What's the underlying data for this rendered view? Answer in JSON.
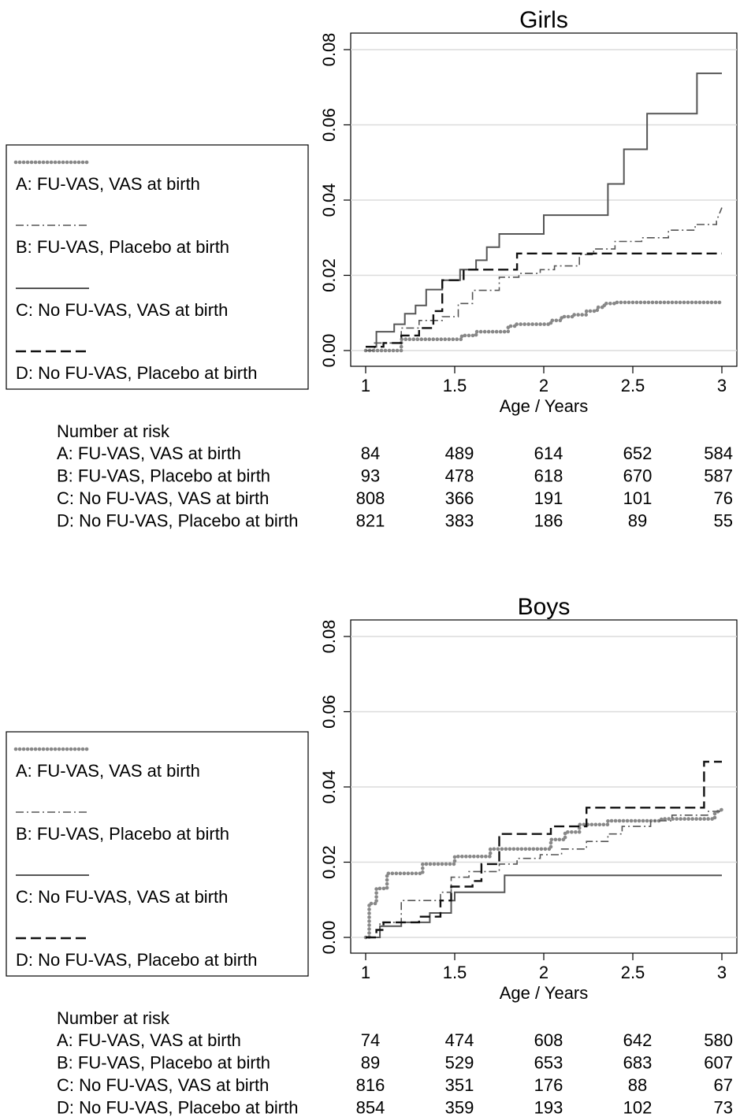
{
  "chart_data": [
    {
      "type": "line",
      "title": "Girls",
      "xlabel": "Age / Years",
      "ylabel": "",
      "xlim": [
        1,
        3
      ],
      "ylim": [
        0,
        0.08
      ],
      "xticks": [
        "1",
        "1.5",
        "2",
        "2.5",
        "3"
      ],
      "yticks": [
        "0.00",
        "0.02",
        "0.04",
        "0.06",
        "0.08"
      ],
      "grid": true,
      "legend_position": "left",
      "series": [
        {
          "name": "A: FU-VAS, VAS at birth",
          "style": "dotted-thick",
          "color": "#888888",
          "x": [
            1,
            1.2,
            1.2,
            1.54,
            1.54,
            1.62,
            1.62,
            1.8,
            1.8,
            1.84,
            1.84,
            2.04,
            2.04,
            2.1,
            2.1,
            2.16,
            2.16,
            2.24,
            2.24,
            2.3,
            2.3,
            2.34,
            2.34,
            2.4,
            2.4,
            3
          ],
          "y": [
            0,
            0,
            0.003,
            0.003,
            0.004,
            0.004,
            0.005,
            0.005,
            0.0065,
            0.0065,
            0.007,
            0.007,
            0.008,
            0.008,
            0.009,
            0.009,
            0.0095,
            0.0095,
            0.0105,
            0.0105,
            0.0115,
            0.0115,
            0.0125,
            0.0125,
            0.0128,
            0.0128
          ]
        },
        {
          "name": "B: FU-VAS, Placebo at birth",
          "style": "dash-dot",
          "color": "#555555",
          "x": [
            1,
            1.05,
            1.05,
            1.2,
            1.2,
            1.3,
            1.3,
            1.43,
            1.43,
            1.52,
            1.52,
            1.6,
            1.6,
            1.75,
            1.75,
            1.86,
            1.86,
            1.98,
            1.98,
            2.06,
            2.06,
            2.2,
            2.2,
            2.28,
            2.28,
            2.4,
            2.4,
            2.55,
            2.55,
            2.7,
            2.7,
            2.85,
            2.85,
            2.97,
            2.97,
            3
          ],
          "y": [
            0,
            0,
            0.002,
            0.002,
            0.006,
            0.006,
            0.008,
            0.008,
            0.009,
            0.009,
            0.0125,
            0.0125,
            0.016,
            0.016,
            0.0195,
            0.0195,
            0.0205,
            0.0205,
            0.0215,
            0.0215,
            0.0225,
            0.0225,
            0.0255,
            0.0255,
            0.027,
            0.027,
            0.029,
            0.029,
            0.03,
            0.03,
            0.032,
            0.032,
            0.0335,
            0.0335,
            0.0345,
            0.038
          ]
        },
        {
          "name": "C: No FU-VAS, VAS at birth",
          "style": "solid",
          "color": "#555555",
          "x": [
            1,
            1.06,
            1.06,
            1.16,
            1.16,
            1.22,
            1.22,
            1.28,
            1.28,
            1.34,
            1.34,
            1.43,
            1.43,
            1.53,
            1.53,
            1.62,
            1.62,
            1.68,
            1.68,
            1.75,
            1.75,
            2.0,
            2.0,
            2.36,
            2.36,
            2.45,
            2.45,
            2.58,
            2.58,
            2.86,
            2.86,
            3
          ],
          "y": [
            0.001,
            0.001,
            0.005,
            0.005,
            0.007,
            0.007,
            0.0098,
            0.0098,
            0.012,
            0.012,
            0.0162,
            0.0162,
            0.0187,
            0.0187,
            0.0215,
            0.0215,
            0.024,
            0.024,
            0.0275,
            0.0275,
            0.031,
            0.031,
            0.036,
            0.036,
            0.0443,
            0.0443,
            0.0535,
            0.0535,
            0.063,
            0.063,
            0.0737,
            0.0737
          ]
        },
        {
          "name": "D: No FU-VAS, Placebo at birth",
          "style": "dashed",
          "color": "#111111",
          "x": [
            1,
            1.1,
            1.1,
            1.2,
            1.2,
            1.3,
            1.3,
            1.38,
            1.38,
            1.43,
            1.43,
            1.55,
            1.55,
            1.85,
            1.85,
            3
          ],
          "y": [
            0.001,
            0.001,
            0.002,
            0.002,
            0.004,
            0.004,
            0.006,
            0.006,
            0.0105,
            0.0105,
            0.0187,
            0.0187,
            0.0215,
            0.0215,
            0.0258,
            0.0258
          ]
        }
      ],
      "risk_table": {
        "heading": "Number at risk",
        "rows": [
          {
            "label": "A: FU-VAS, VAS at birth",
            "values": [
              "84",
              "489",
              "614",
              "652",
              "584"
            ]
          },
          {
            "label": "B: FU-VAS, Placebo at birth",
            "values": [
              "93",
              "478",
              "618",
              "670",
              "587"
            ]
          },
          {
            "label": "C: No FU-VAS, VAS at birth",
            "values": [
              "808",
              "366",
              "191",
              "101",
              "76"
            ]
          },
          {
            "label": "D: No FU-VAS, Placebo at birth",
            "values": [
              "821",
              "383",
              "186",
              "89",
              "55"
            ]
          }
        ]
      }
    },
    {
      "type": "line",
      "title": "Boys",
      "xlabel": "Age / Years",
      "ylabel": "",
      "xlim": [
        1,
        3
      ],
      "ylim": [
        0,
        0.08
      ],
      "xticks": [
        "1",
        "1.5",
        "2",
        "2.5",
        "3"
      ],
      "yticks": [
        "0.00",
        "0.02",
        "0.04",
        "0.06",
        "0.08"
      ],
      "grid": true,
      "legend_position": "left",
      "series": [
        {
          "name": "A: FU-VAS, VAS at birth",
          "style": "dotted-thick",
          "color": "#888888",
          "x": [
            1,
            1.02,
            1.02,
            1.06,
            1.06,
            1.12,
            1.12,
            1.32,
            1.32,
            1.5,
            1.5,
            1.7,
            1.7,
            2.04,
            2.04,
            2.12,
            2.12,
            2.2,
            2.2,
            2.36,
            2.36,
            2.66,
            2.66,
            2.96,
            2.96,
            3
          ],
          "y": [
            0,
            0,
            0.009,
            0.009,
            0.013,
            0.013,
            0.017,
            0.017,
            0.0195,
            0.0195,
            0.0215,
            0.0215,
            0.0235,
            0.0235,
            0.026,
            0.026,
            0.028,
            0.028,
            0.03,
            0.03,
            0.031,
            0.031,
            0.0315,
            0.0315,
            0.033,
            0.034
          ]
        },
        {
          "name": "B: FU-VAS, Placebo at birth",
          "style": "dash-dot",
          "color": "#555555",
          "x": [
            1,
            1.08,
            1.08,
            1.2,
            1.2,
            1.42,
            1.42,
            1.48,
            1.48,
            1.58,
            1.58,
            1.75,
            1.75,
            1.85,
            1.85,
            1.98,
            1.98,
            2.1,
            2.1,
            2.24,
            2.24,
            2.36,
            2.36,
            2.44,
            2.44,
            2.6,
            2.6,
            2.72,
            2.72,
            2.92,
            2.92,
            3
          ],
          "y": [
            0,
            0,
            0.004,
            0.004,
            0.0098,
            0.0098,
            0.012,
            0.012,
            0.016,
            0.016,
            0.0175,
            0.0175,
            0.0195,
            0.0195,
            0.021,
            0.021,
            0.022,
            0.022,
            0.0235,
            0.0235,
            0.0255,
            0.0255,
            0.0275,
            0.0275,
            0.0295,
            0.0295,
            0.031,
            0.031,
            0.0325,
            0.0325,
            0.0335,
            0.0335
          ]
        },
        {
          "name": "C: No FU-VAS, VAS at birth",
          "style": "solid",
          "color": "#555555",
          "x": [
            1,
            1.08,
            1.08,
            1.2,
            1.2,
            1.36,
            1.36,
            1.48,
            1.48,
            1.5,
            1.5,
            1.6,
            1.6,
            1.68,
            1.68,
            1.78,
            1.78,
            3
          ],
          "y": [
            0,
            0,
            0.003,
            0.003,
            0.004,
            0.004,
            0.0065,
            0.0065,
            0.0098,
            0.0098,
            0.012,
            0.012,
            0.012,
            0.012,
            0.012,
            0.012,
            0.0165,
            0.0165
          ]
        },
        {
          "name": "D: No FU-VAS, Placebo at birth",
          "style": "dashed",
          "color": "#111111",
          "x": [
            1,
            1.06,
            1.06,
            1.1,
            1.1,
            1.3,
            1.3,
            1.42,
            1.42,
            1.48,
            1.48,
            1.6,
            1.6,
            1.65,
            1.65,
            1.75,
            1.75,
            2.04,
            2.04,
            2.24,
            2.24,
            2.9,
            2.9,
            3
          ],
          "y": [
            0,
            0,
            0.002,
            0.002,
            0.004,
            0.004,
            0.0055,
            0.0055,
            0.0098,
            0.0098,
            0.0135,
            0.0135,
            0.015,
            0.015,
            0.0195,
            0.0195,
            0.0275,
            0.0275,
            0.0295,
            0.0295,
            0.0345,
            0.0345,
            0.0467,
            0.0467
          ]
        }
      ],
      "risk_table": {
        "heading": "Number at risk",
        "rows": [
          {
            "label": "A: FU-VAS, VAS at birth",
            "values": [
              "74",
              "474",
              "608",
              "642",
              "580"
            ]
          },
          {
            "label": "B: FU-VAS, Placebo at birth",
            "values": [
              "89",
              "529",
              "653",
              "683",
              "607"
            ]
          },
          {
            "label": "C: No FU-VAS, VAS at birth",
            "values": [
              "816",
              "351",
              "176",
              "88",
              "67"
            ]
          },
          {
            "label": "D: No FU-VAS, Placebo at birth",
            "values": [
              "854",
              "359",
              "193",
              "102",
              "73"
            ]
          }
        ]
      }
    }
  ]
}
